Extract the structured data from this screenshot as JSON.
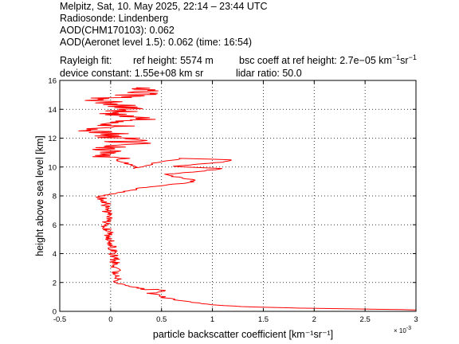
{
  "header": {
    "line1": "Melpitz, Sat, 10. May 2025, 22:14 – 23:44 UTC",
    "line2": "Radiosonde: Lindenberg",
    "line3": "AOD(CHM170103): 0.062",
    "line4": "AOD(Aeronet level 1.5): 0.062   (time: 16:54)",
    "rayleigh_label": "Rayleigh fit:",
    "ref_height": "ref height: 5574 m",
    "bsc_coeff_prefix": "bsc coeff at ref height: 2.7e−05 km",
    "device_constant": "device constant: 1.55e+08 km sr",
    "lidar_ratio": "lidar ratio: 50.0"
  },
  "chart_data": {
    "type": "line",
    "title": "",
    "xlabel": "particle backscatter coefficient [km⁻¹sr⁻¹]",
    "ylabel": "height above sea level [km]",
    "x_multiplier_label": "× 10",
    "x_multiplier_exponent": "-3",
    "xlim": [
      -0.5,
      3.0
    ],
    "ylim": [
      0,
      16
    ],
    "x_ticks": [
      -0.5,
      0,
      0.5,
      1,
      1.5,
      2,
      2.5,
      3
    ],
    "x_tick_labels": [
      "-0.5",
      "0",
      "0.5",
      "1",
      "1.5",
      "2",
      "2.5",
      "3"
    ],
    "y_ticks": [
      0,
      2,
      4,
      6,
      8,
      10,
      12,
      14,
      16
    ],
    "y_tick_labels": [
      "0",
      "2",
      "4",
      "6",
      "8",
      "10",
      "12",
      "14",
      "16"
    ],
    "grid": true,
    "series_color": "#ff0000",
    "series": [
      {
        "name": "",
        "points": [
          [
            3.0,
            0.1
          ],
          [
            2.7,
            0.14
          ],
          [
            2.3,
            0.18
          ],
          [
            1.9,
            0.22
          ],
          [
            1.6,
            0.27
          ],
          [
            1.3,
            0.33
          ],
          [
            1.1,
            0.4
          ],
          [
            0.95,
            0.5
          ],
          [
            0.82,
            0.62
          ],
          [
            0.7,
            0.75
          ],
          [
            0.6,
            0.85
          ],
          [
            0.52,
            0.95
          ],
          [
            0.5,
            1.05
          ],
          [
            0.48,
            1.15
          ],
          [
            0.38,
            1.25
          ],
          [
            0.5,
            1.35
          ],
          [
            0.55,
            1.45
          ],
          [
            0.45,
            1.52
          ],
          [
            0.35,
            1.5
          ],
          [
            0.3,
            1.58
          ],
          [
            0.25,
            1.65
          ],
          [
            0.2,
            1.72
          ],
          [
            0.15,
            1.8
          ],
          [
            0.1,
            1.9
          ],
          [
            0.06,
            2.0
          ],
          [
            0.06,
            2.2
          ],
          [
            0.05,
            2.5
          ],
          [
            0.05,
            3.0
          ],
          [
            0.04,
            3.5
          ],
          [
            0.03,
            4.0
          ],
          [
            0.02,
            4.5
          ],
          [
            0.0,
            5.0
          ],
          [
            -0.02,
            5.5
          ],
          [
            -0.05,
            6.0
          ],
          [
            -0.03,
            6.5
          ],
          [
            -0.04,
            7.0
          ],
          [
            -0.05,
            7.5
          ],
          [
            -0.1,
            7.95
          ],
          [
            -0.05,
            8.05
          ],
          [
            0.05,
            8.2
          ],
          [
            0.18,
            8.35
          ],
          [
            0.3,
            8.55
          ],
          [
            0.5,
            8.7
          ],
          [
            0.75,
            8.9
          ],
          [
            0.85,
            9.1
          ],
          [
            0.65,
            9.3
          ],
          [
            0.55,
            9.5
          ],
          [
            0.8,
            9.65
          ],
          [
            1.1,
            9.9
          ],
          [
            0.6,
            10.05
          ],
          [
            1.05,
            10.3
          ],
          [
            1.2,
            10.5
          ],
          [
            0.7,
            10.6
          ],
          [
            0.45,
            10.3
          ],
          [
            0.35,
            10.1
          ],
          [
            0.25,
            9.9
          ],
          [
            0.18,
            10.2
          ],
          [
            0.1,
            10.4
          ],
          [
            0.0,
            10.8
          ],
          [
            0.05,
            11.3
          ],
          [
            0.2,
            11.6
          ],
          [
            0.1,
            12.0
          ],
          [
            -0.1,
            12.5
          ],
          [
            0.1,
            13.0
          ],
          [
            0.3,
            13.3
          ],
          [
            0.0,
            13.7
          ],
          [
            0.2,
            14.0
          ],
          [
            0.1,
            14.4
          ],
          [
            -0.1,
            14.7
          ],
          [
            0.2,
            14.9
          ],
          [
            0.3,
            15.2
          ],
          [
            0.25,
            15.5
          ]
        ]
      }
    ]
  }
}
